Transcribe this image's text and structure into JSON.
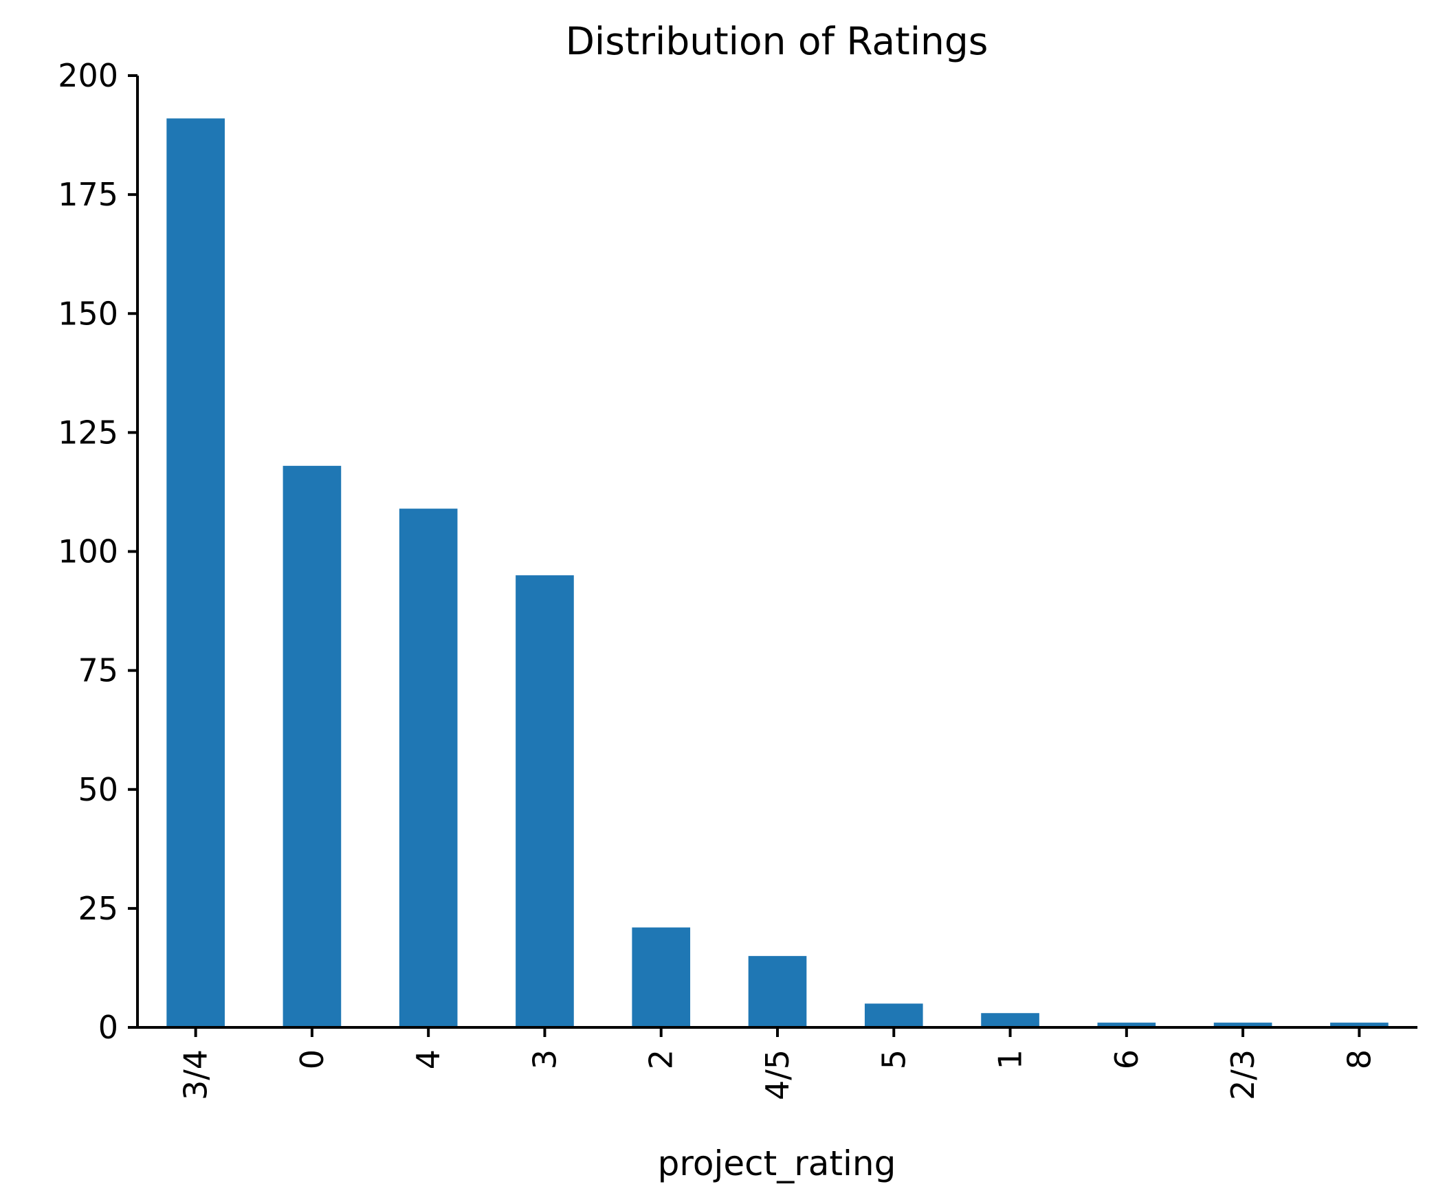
{
  "chart_data": {
    "type": "bar",
    "title": "Distribution of Ratings",
    "xlabel": "project_rating",
    "ylabel": "",
    "categories": [
      "3/4",
      "0",
      "4",
      "3",
      "2",
      "4/5",
      "5",
      "1",
      "6",
      "2/3",
      "8"
    ],
    "values": [
      191,
      118,
      109,
      95,
      21,
      15,
      5,
      3,
      1,
      1,
      1
    ],
    "ylim": [
      0,
      200
    ],
    "yticks": [
      0,
      25,
      50,
      75,
      100,
      125,
      150,
      175,
      200
    ],
    "grid": false,
    "legend": "none",
    "bar_color": "#1f77b4",
    "xtick_rotation": "vertical"
  }
}
